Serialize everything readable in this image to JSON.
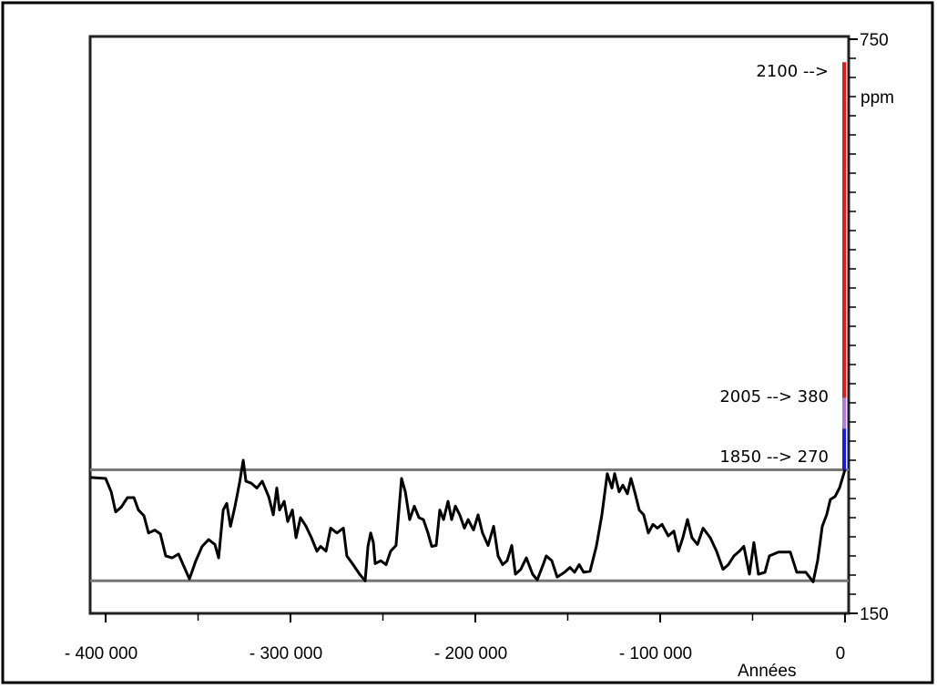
{
  "chart_data": {
    "type": "line",
    "color": "#000000",
    "x_label": "Années",
    "y_label": "ppm",
    "xlim": [
      -408400,
      2000
    ],
    "ylim": [
      150,
      750
    ],
    "xticks": [
      {
        "value": -400000,
        "label": "- 400 000"
      },
      {
        "value": -300000,
        "label": "- 300 000"
      },
      {
        "value": -200000,
        "label": "- 200 000"
      },
      {
        "value": -100000,
        "label": "- 100 000"
      },
      0
    ],
    "xminorticks": [
      -350000,
      -250000,
      -150000,
      -50000
    ],
    "yticks": [
      150,
      750
    ],
    "yminorticks": [
      170,
      190,
      210,
      230,
      250,
      270,
      290,
      310,
      330,
      350,
      370,
      390,
      410,
      430,
      450,
      470,
      490,
      510,
      530,
      550,
      570,
      590,
      610,
      630,
      650,
      670,
      690,
      710,
      730
    ],
    "reference_lines": [
      {
        "value": 300,
        "color": "#777777"
      },
      {
        "value": 184,
        "color": "#777777"
      }
    ],
    "annotations": [
      "2100 -->",
      "2005 --> 380",
      "1850 --> 270"
    ],
    "projection": [
      {
        "from": 375,
        "to": 726,
        "color": "#e41a1a"
      },
      {
        "from": 343,
        "to": 375,
        "color": "#b07ae0"
      },
      {
        "from": 300,
        "to": 343,
        "color": "#1a1ae0"
      }
    ],
    "x": [
      -408000,
      -400000,
      -397000,
      -394600,
      -391600,
      -388200,
      -384700,
      -382300,
      -379300,
      -376800,
      -373400,
      -370400,
      -367500,
      -364000,
      -360600,
      -358100,
      -354700,
      -351200,
      -347800,
      -344300,
      -340900,
      -338900,
      -336400,
      -334500,
      -332500,
      -330000,
      -327600,
      -325600,
      -324100,
      -321200,
      -318200,
      -315300,
      -311800,
      -309300,
      -307400,
      -305900,
      -303400,
      -301500,
      -299000,
      -297000,
      -294600,
      -291600,
      -288700,
      -285700,
      -283700,
      -280800,
      -278300,
      -274900,
      -271400,
      -269500,
      -266500,
      -262600,
      -259600,
      -258100,
      -256600,
      -255200,
      -254200,
      -251200,
      -248300,
      -245800,
      -242900,
      -239900,
      -237900,
      -235500,
      -233000,
      -230500,
      -228100,
      -225600,
      -223600,
      -221200,
      -219200,
      -217200,
      -214800,
      -212800,
      -210800,
      -208400,
      -205900,
      -203900,
      -201000,
      -198500,
      -196100,
      -193100,
      -190100,
      -187700,
      -185200,
      -182800,
      -180300,
      -178300,
      -175400,
      -172400,
      -169000,
      -166500,
      -163100,
      -161600,
      -158600,
      -155700,
      -151700,
      -148800,
      -146300,
      -143800,
      -141400,
      -137900,
      -134500,
      -131500,
      -128600,
      -126100,
      -124600,
      -122200,
      -120200,
      -117700,
      -115800,
      -113800,
      -111300,
      -108900,
      -106400,
      -103900,
      -101500,
      -99000,
      -95600,
      -92600,
      -90100,
      -87700,
      -85200,
      -82800,
      -79800,
      -76800,
      -72900,
      -69500,
      -66000,
      -63100,
      -60100,
      -57100,
      -54700,
      -51700,
      -49300,
      -46800,
      -43300,
      -40900,
      -36000,
      -29600,
      -26100,
      -21200,
      -17200,
      -14800,
      -12300,
      -9900,
      -7900,
      -5400,
      -3000,
      0
    ],
    "values": [
      292,
      291,
      277,
      256,
      261,
      271,
      271,
      258,
      252,
      234,
      237,
      233,
      210,
      208,
      212,
      201,
      186,
      205,
      220,
      227,
      222,
      208,
      258,
      265,
      241,
      262,
      286,
      310,
      288,
      286,
      281,
      288,
      272,
      253,
      281,
      258,
      267,
      246,
      258,
      229,
      250,
      241,
      229,
      215,
      220,
      215,
      239,
      234,
      239,
      210,
      202,
      191,
      184,
      220,
      234,
      224,
      202,
      205,
      201,
      215,
      221,
      291,
      277,
      248,
      262,
      250,
      248,
      234,
      220,
      221,
      258,
      248,
      267,
      248,
      262,
      253,
      239,
      248,
      237,
      253,
      234,
      221,
      241,
      210,
      201,
      205,
      221,
      191,
      196,
      208,
      191,
      185,
      202,
      210,
      205,
      188,
      193,
      198,
      193,
      201,
      193,
      194,
      220,
      253,
      296,
      281,
      296,
      277,
      284,
      275,
      291,
      277,
      258,
      253,
      234,
      243,
      239,
      243,
      231,
      236,
      215,
      229,
      248,
      229,
      222,
      239,
      229,
      215,
      196,
      201,
      210,
      215,
      220,
      191,
      224,
      191,
      193,
      210,
      214,
      214,
      193,
      193,
      183,
      205,
      241,
      253,
      269,
      272,
      281,
      300
    ]
  }
}
